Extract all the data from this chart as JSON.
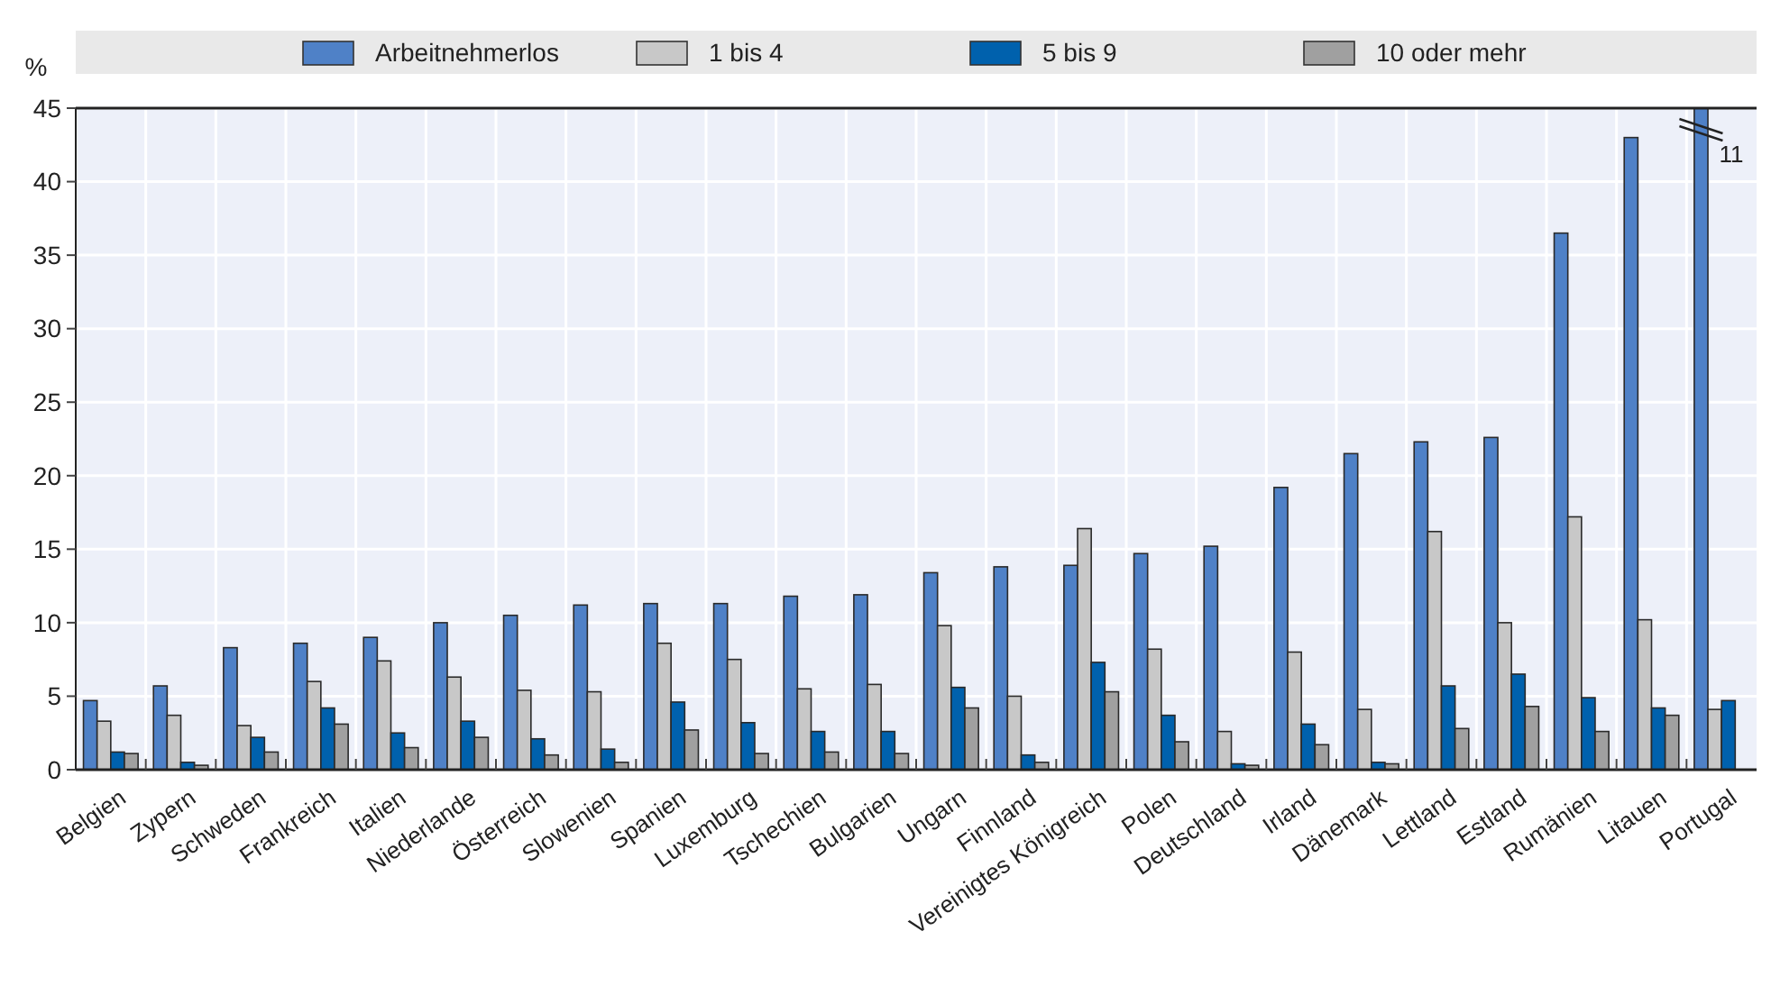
{
  "chart_data": {
    "type": "bar",
    "ylabel": "%",
    "categories": [
      "Belgien",
      "Zypern",
      "Schweden",
      "Frankreich",
      "Italien",
      "Niederlande",
      "Österreich",
      "Slowenien",
      "Spanien",
      "Luxemburg",
      "Tschechien",
      "Bulgarien",
      "Ungarn",
      "Finnland",
      "Vereinigtes Königreich",
      "Polen",
      "Deutschland",
      "Irland",
      "Dänemark",
      "Lettland",
      "Estland",
      "Rumänien",
      "Litauen",
      "Portugal"
    ],
    "series": [
      {
        "name": "Arbeitnehmerlos",
        "color": "#4f81c7",
        "values": [
          4.7,
          5.7,
          8.3,
          8.6,
          9.0,
          10.0,
          10.5,
          11.2,
          11.3,
          11.3,
          11.8,
          11.9,
          13.4,
          13.8,
          13.9,
          14.7,
          15.2,
          19.2,
          21.5,
          22.3,
          22.6,
          36.5,
          43.0,
          45
        ]
      },
      {
        "name": "1 bis 4",
        "color": "#c8c8c8",
        "values": [
          3.3,
          3.7,
          3.0,
          6.0,
          7.4,
          6.3,
          5.4,
          5.3,
          8.6,
          7.5,
          5.5,
          5.8,
          9.8,
          5.0,
          16.4,
          8.2,
          2.6,
          8.0,
          4.1,
          16.2,
          10.0,
          17.2,
          10.2,
          4.1
        ]
      },
      {
        "name": "5 bis 9",
        "color": "#0061ad",
        "values": [
          1.2,
          0.5,
          2.2,
          4.2,
          2.5,
          3.3,
          2.1,
          1.4,
          4.6,
          3.2,
          2.6,
          2.6,
          5.6,
          1.0,
          7.3,
          3.7,
          0.4,
          3.1,
          0.5,
          5.7,
          6.5,
          4.9,
          4.2,
          4.7
        ]
      },
      {
        "name": "10 oder mehr",
        "color": "#a0a0a0",
        "values": [
          1.1,
          0.3,
          1.2,
          3.1,
          1.5,
          2.2,
          1.0,
          0.5,
          2.7,
          1.1,
          1.2,
          1.1,
          4.2,
          0.5,
          5.3,
          1.9,
          0.3,
          1.7,
          0.4,
          2.8,
          4.3,
          2.6,
          3.7,
          null
        ]
      }
    ],
    "ylim": [
      0,
      45
    ],
    "yticks": [
      0,
      5,
      10,
      15,
      20,
      25,
      30,
      35,
      40,
      45
    ],
    "grid": true,
    "legend": "top",
    "annotations": [
      "11"
    ]
  }
}
